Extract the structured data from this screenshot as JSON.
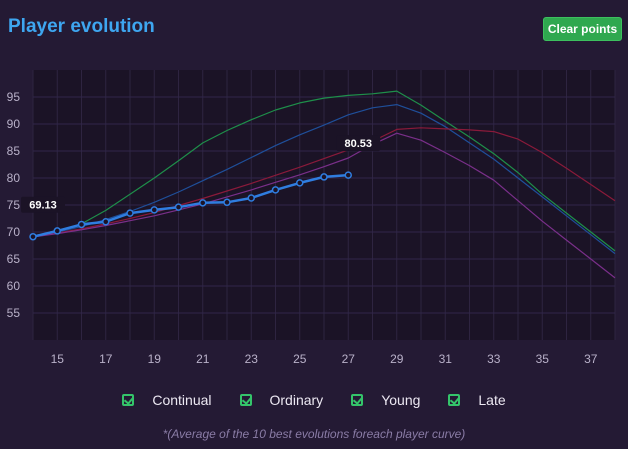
{
  "header": {
    "title": "Player evolution",
    "clear_label": "Clear points"
  },
  "legend": [
    {
      "label": "Continual"
    },
    {
      "label": "Ordinary"
    },
    {
      "label": "Young"
    },
    {
      "label": "Late"
    }
  ],
  "footnote": "*(Average of the 10 best evolutions foreach player curve)",
  "colors": {
    "background": "#241a34",
    "plot_background": "#1b1326",
    "player": "#2f7de0",
    "late": "#1e8f4a",
    "continual": "#8a1a3a",
    "ordinary": "#7a2f8a",
    "young": "#1f4f9a",
    "check": "#34c46a",
    "button": "#2fa84f",
    "title": "#3ea6f0"
  },
  "chart_data": {
    "type": "line",
    "x_ticks": [
      15,
      17,
      19,
      21,
      23,
      25,
      27,
      29,
      31,
      33,
      35,
      37
    ],
    "y_ticks": [
      55,
      60,
      65,
      70,
      75,
      80,
      85,
      90,
      95
    ],
    "xlim": [
      14,
      38
    ],
    "ylim": [
      50,
      100
    ],
    "grid": true,
    "legend_position": "bottom",
    "series": [
      {
        "name": "Late",
        "color_key": "late",
        "x": [
          14,
          15,
          16,
          17,
          18,
          19,
          20,
          21,
          22,
          23,
          24,
          25,
          26,
          27,
          28,
          29,
          30,
          31,
          32,
          33,
          34,
          35,
          36,
          37,
          38
        ],
        "y": [
          69.1,
          70.2,
          71.5,
          74.0,
          77.0,
          80.0,
          83.2,
          86.5,
          88.8,
          90.8,
          92.6,
          93.9,
          94.8,
          95.3,
          95.6,
          96.1,
          93.5,
          90.5,
          87.6,
          84.5,
          81.0,
          77.0,
          73.5,
          70.0,
          66.5
        ]
      },
      {
        "name": "Young",
        "color_key": "young",
        "x": [
          14,
          15,
          16,
          17,
          18,
          19,
          20,
          21,
          22,
          23,
          24,
          25,
          26,
          27,
          28,
          29,
          30,
          31,
          32,
          33,
          34,
          35,
          36,
          37,
          38
        ],
        "y": [
          69.1,
          70.0,
          71.0,
          72.3,
          73.8,
          75.5,
          77.4,
          79.5,
          81.6,
          83.8,
          86.0,
          88.0,
          89.8,
          91.7,
          93.0,
          93.6,
          92.0,
          89.5,
          86.5,
          83.5,
          80.0,
          76.5,
          73.0,
          69.5,
          66.0
        ]
      },
      {
        "name": "Continual",
        "color_key": "continual",
        "x": [
          14,
          15,
          16,
          17,
          18,
          19,
          20,
          21,
          22,
          23,
          24,
          25,
          26,
          27,
          28,
          29,
          30,
          31,
          32,
          33,
          34,
          35,
          36,
          37,
          38
        ],
        "y": [
          69.1,
          69.8,
          70.6,
          71.5,
          72.5,
          73.6,
          74.9,
          76.2,
          77.6,
          79.0,
          80.5,
          82.0,
          83.6,
          85.2,
          86.8,
          89.0,
          89.3,
          89.1,
          88.9,
          88.6,
          87.2,
          84.7,
          81.8,
          78.8,
          75.8
        ]
      },
      {
        "name": "Ordinary",
        "color_key": "ordinary",
        "x": [
          14,
          15,
          16,
          17,
          18,
          19,
          20,
          21,
          22,
          23,
          24,
          25,
          26,
          27,
          28,
          29,
          30,
          31,
          32,
          33,
          34,
          35,
          36,
          37,
          38
        ],
        "y": [
          69.1,
          69.7,
          70.4,
          71.2,
          72.1,
          73.0,
          74.1,
          75.2,
          76.5,
          77.8,
          79.2,
          80.6,
          82.1,
          83.7,
          86.2,
          88.3,
          87.0,
          84.7,
          82.3,
          79.6,
          75.8,
          72.0,
          68.5,
          65.0,
          61.5
        ]
      },
      {
        "name": "Player",
        "color_key": "player",
        "markers": true,
        "x": [
          14,
          15,
          16,
          17,
          18,
          19,
          20,
          21,
          22,
          23,
          24,
          25,
          26,
          27
        ],
        "y": [
          69.13,
          70.2,
          71.4,
          71.9,
          73.5,
          74.1,
          74.6,
          75.4,
          75.5,
          76.3,
          77.8,
          79.1,
          80.2,
          80.53
        ]
      }
    ],
    "annotations": [
      {
        "x": 14,
        "y": 69.13,
        "text": "69.13"
      },
      {
        "x": 27,
        "y": 80.53,
        "text": "80.53"
      }
    ]
  }
}
